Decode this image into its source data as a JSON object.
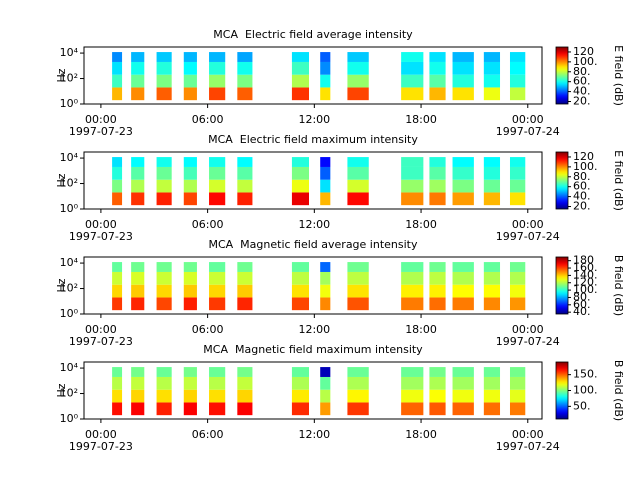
{
  "chart_data": [
    {
      "type": "spectrogram",
      "title": "MCA  Electric field average intensity",
      "ylabel": "Hz",
      "colorbar_label": "E field (dB)",
      "colormap": "jet",
      "log_y": true,
      "xlim": [
        -0.95,
        24.8
      ],
      "xticks": [
        {
          "value": 0,
          "label": "00:00"
        },
        {
          "value": 6,
          "label": "06:00"
        },
        {
          "value": 12,
          "label": "12:00"
        },
        {
          "value": 18,
          "label": "18:00"
        },
        {
          "value": 24,
          "label": "00:00"
        }
      ],
      "x_dates": [
        {
          "value": 0,
          "label": "1997-07-23"
        },
        {
          "value": 24,
          "label": "1997-07-24"
        }
      ],
      "ylim": [
        1,
        30000
      ],
      "yticks": [
        {
          "value": 1,
          "label": "10⁰"
        },
        {
          "value": 100,
          "label": "10²"
        },
        {
          "value": 10000,
          "label": "10⁴"
        }
      ],
      "freq_bins": [
        2,
        20,
        200,
        2000,
        12000
      ],
      "segments": [
        [
          0.63,
          1.19
        ],
        [
          1.7,
          2.44
        ],
        [
          3.13,
          3.98
        ],
        [
          4.66,
          5.4
        ],
        [
          6.08,
          6.99
        ],
        [
          7.67,
          8.52
        ],
        [
          10.74,
          11.7
        ],
        [
          12.33,
          12.9
        ],
        [
          13.86,
          15.06
        ],
        [
          16.88,
          18.13
        ],
        [
          18.47,
          19.38
        ],
        [
          19.77,
          20.97
        ],
        [
          21.53,
          22.44
        ],
        [
          23.0,
          23.86
        ]
      ],
      "values": [
        [
          95,
          65,
          55,
          45
        ],
        [
          100,
          70,
          60,
          50
        ],
        [
          105,
          72,
          62,
          52
        ],
        [
          100,
          70,
          58,
          50
        ],
        [
          108,
          75,
          62,
          50
        ],
        [
          105,
          72,
          60,
          48
        ],
        [
          110,
          78,
          65,
          55
        ],
        [
          90,
          60,
          45,
          40
        ],
        [
          108,
          75,
          60,
          52
        ],
        [
          90,
          65,
          55,
          60
        ],
        [
          95,
          68,
          60,
          55
        ],
        [
          90,
          62,
          55,
          50
        ],
        [
          85,
          60,
          55,
          50
        ],
        [
          80,
          62,
          58,
          55
        ]
      ],
      "clim": [
        15,
        130
      ],
      "cticks": [
        {
          "value": 20,
          "label": "20."
        },
        {
          "value": 40,
          "label": "40."
        },
        {
          "value": 60,
          "label": "60."
        },
        {
          "value": 80,
          "label": "80."
        },
        {
          "value": 100,
          "label": "100."
        },
        {
          "value": 120,
          "label": "120"
        }
      ]
    },
    {
      "type": "spectrogram",
      "title": "MCA  Electric field maximum intensity",
      "ylabel": "Hz",
      "colorbar_label": "E field (dB)",
      "colormap": "jet",
      "log_y": true,
      "xlim": [
        -0.95,
        24.8
      ],
      "xticks": [
        {
          "value": 0,
          "label": "00:00"
        },
        {
          "value": 6,
          "label": "06:00"
        },
        {
          "value": 12,
          "label": "12:00"
        },
        {
          "value": 18,
          "label": "18:00"
        },
        {
          "value": 24,
          "label": "00:00"
        }
      ],
      "x_dates": [
        {
          "value": 0,
          "label": "1997-07-23"
        },
        {
          "value": 24,
          "label": "1997-07-24"
        }
      ],
      "ylim": [
        1,
        30000
      ],
      "yticks": [
        {
          "value": 1,
          "label": "10⁰"
        },
        {
          "value": 100,
          "label": "10²"
        },
        {
          "value": 10000,
          "label": "10⁴"
        }
      ],
      "freq_bins": [
        2,
        20,
        200,
        2000,
        12000
      ],
      "segments": [
        [
          0.63,
          1.19
        ],
        [
          1.7,
          2.44
        ],
        [
          3.13,
          3.98
        ],
        [
          4.66,
          5.4
        ],
        [
          6.08,
          6.99
        ],
        [
          7.67,
          8.52
        ],
        [
          10.74,
          11.7
        ],
        [
          12.33,
          12.9
        ],
        [
          13.86,
          15.06
        ],
        [
          16.88,
          18.13
        ],
        [
          18.47,
          19.38
        ],
        [
          19.77,
          20.97
        ],
        [
          21.53,
          22.44
        ],
        [
          23.0,
          23.86
        ]
      ],
      "values": [
        [
          105,
          72,
          62,
          55
        ],
        [
          110,
          78,
          68,
          58
        ],
        [
          112,
          80,
          70,
          60
        ],
        [
          108,
          78,
          66,
          58
        ],
        [
          115,
          82,
          70,
          60
        ],
        [
          112,
          80,
          68,
          58
        ],
        [
          118,
          85,
          72,
          62
        ],
        [
          95,
          55,
          40,
          30
        ],
        [
          115,
          82,
          68,
          60
        ],
        [
          100,
          75,
          65,
          65
        ],
        [
          102,
          76,
          68,
          62
        ],
        [
          98,
          72,
          64,
          58
        ],
        [
          95,
          70,
          62,
          58
        ],
        [
          90,
          70,
          64,
          60
        ]
      ],
      "clim": [
        15,
        130
      ],
      "cticks": [
        {
          "value": 20,
          "label": "20."
        },
        {
          "value": 40,
          "label": "40."
        },
        {
          "value": 60,
          "label": "60."
        },
        {
          "value": 80,
          "label": "80."
        },
        {
          "value": 100,
          "label": "100."
        },
        {
          "value": 120,
          "label": "120"
        }
      ]
    },
    {
      "type": "spectrogram",
      "title": "MCA  Magnetic field average intensity",
      "ylabel": "Hz",
      "colorbar_label": "B field (dB)",
      "colormap": "jet",
      "log_y": true,
      "xlim": [
        -0.95,
        24.8
      ],
      "xticks": [
        {
          "value": 0,
          "label": "00:00"
        },
        {
          "value": 6,
          "label": "06:00"
        },
        {
          "value": 12,
          "label": "12:00"
        },
        {
          "value": 18,
          "label": "18:00"
        },
        {
          "value": 24,
          "label": "00:00"
        }
      ],
      "x_dates": [
        {
          "value": 0,
          "label": "1997-07-23"
        },
        {
          "value": 24,
          "label": "1997-07-24"
        }
      ],
      "ylim": [
        1,
        30000
      ],
      "yticks": [
        {
          "value": 1,
          "label": "10⁰"
        },
        {
          "value": 100,
          "label": "10²"
        },
        {
          "value": 10000,
          "label": "10⁴"
        }
      ],
      "freq_bins": [
        2,
        20,
        200,
        2000,
        12000
      ],
      "segments": [
        [
          0.63,
          1.19
        ],
        [
          1.7,
          2.44
        ],
        [
          3.13,
          3.98
        ],
        [
          4.66,
          5.4
        ],
        [
          6.08,
          6.99
        ],
        [
          7.67,
          8.52
        ],
        [
          10.74,
          11.7
        ],
        [
          12.33,
          12.9
        ],
        [
          13.86,
          15.06
        ],
        [
          16.88,
          18.13
        ],
        [
          18.47,
          19.38
        ],
        [
          19.77,
          20.97
        ],
        [
          21.53,
          22.44
        ],
        [
          23.0,
          23.86
        ]
      ],
      "values": [
        [
          162,
          138,
          124,
          108
        ],
        [
          165,
          140,
          126,
          110
        ],
        [
          160,
          138,
          124,
          110
        ],
        [
          166,
          140,
          126,
          110
        ],
        [
          162,
          138,
          124,
          108
        ],
        [
          165,
          140,
          124,
          110
        ],
        [
          160,
          136,
          122,
          108
        ],
        [
          150,
          130,
          118,
          70
        ],
        [
          158,
          136,
          122,
          110
        ],
        [
          152,
          134,
          120,
          108
        ],
        [
          154,
          134,
          122,
          110
        ],
        [
          152,
          132,
          120,
          108
        ],
        [
          150,
          132,
          120,
          108
        ],
        [
          148,
          130,
          120,
          110
        ]
      ],
      "clim": [
        35,
        190
      ],
      "cticks": [
        {
          "value": 40,
          "label": "40."
        },
        {
          "value": 60,
          "label": "60."
        },
        {
          "value": 80,
          "label": "80."
        },
        {
          "value": 100,
          "label": "100."
        },
        {
          "value": 120,
          "label": "120."
        },
        {
          "value": 140,
          "label": "140."
        },
        {
          "value": 160,
          "label": "160."
        },
        {
          "value": 180,
          "label": "180"
        }
      ]
    },
    {
      "type": "spectrogram",
      "title": "MCA  Magnetic field maximum intensity",
      "ylabel": "Hz",
      "colorbar_label": "B field (dB)",
      "colormap": "jet",
      "log_y": true,
      "xlim": [
        -0.95,
        24.8
      ],
      "xticks": [
        {
          "value": 0,
          "label": "00:00"
        },
        {
          "value": 6,
          "label": "06:00"
        },
        {
          "value": 12,
          "label": "12:00"
        },
        {
          "value": 18,
          "label": "18:00"
        },
        {
          "value": 24,
          "label": "00:00"
        }
      ],
      "x_dates": [
        {
          "value": 0,
          "label": "1997-07-23"
        },
        {
          "value": 24,
          "label": "1997-07-24"
        }
      ],
      "ylim": [
        1,
        30000
      ],
      "yticks": [
        {
          "value": 1,
          "label": "10⁰"
        },
        {
          "value": 100,
          "label": "10²"
        },
        {
          "value": 10000,
          "label": "10⁴"
        }
      ],
      "freq_bins": [
        2,
        20,
        200,
        2000,
        12000
      ],
      "segments": [
        [
          0.63,
          1.19
        ],
        [
          1.7,
          2.44
        ],
        [
          3.13,
          3.98
        ],
        [
          4.66,
          5.4
        ],
        [
          6.08,
          6.99
        ],
        [
          7.67,
          8.52
        ],
        [
          10.74,
          11.7
        ],
        [
          12.33,
          12.9
        ],
        [
          13.86,
          15.06
        ],
        [
          16.88,
          18.13
        ],
        [
          18.47,
          19.38
        ],
        [
          19.77,
          20.97
        ],
        [
          21.53,
          22.44
        ],
        [
          23.0,
          23.86
        ]
      ],
      "values": [
        [
          165,
          128,
          110,
          96
        ],
        [
          168,
          130,
          112,
          98
        ],
        [
          162,
          128,
          110,
          96
        ],
        [
          168,
          130,
          112,
          98
        ],
        [
          165,
          128,
          110,
          96
        ],
        [
          168,
          130,
          112,
          98
        ],
        [
          160,
          126,
          108,
          95
        ],
        [
          140,
          110,
          95,
          20
        ],
        [
          158,
          124,
          108,
          96
        ],
        [
          150,
          120,
          106,
          96
        ],
        [
          152,
          122,
          108,
          98
        ],
        [
          150,
          120,
          106,
          96
        ],
        [
          148,
          120,
          106,
          96
        ],
        [
          146,
          118,
          106,
          98
        ]
      ],
      "clim": [
        10,
        190
      ],
      "cticks": [
        {
          "value": 50,
          "label": "50."
        },
        {
          "value": 100,
          "label": "100."
        },
        {
          "value": 150,
          "label": "150."
        }
      ]
    }
  ]
}
